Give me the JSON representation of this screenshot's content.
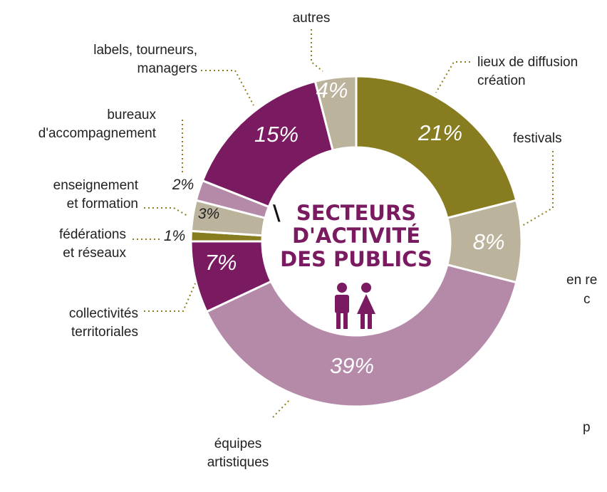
{
  "colors": {
    "olive": "#877c1f",
    "beige": "#bcb39c",
    "mauve": "#b58aa9",
    "purple": "#7a1a61",
    "leader": "#8f7d1d",
    "title": "#7a1a61"
  },
  "center": {
    "title_slash": "\\",
    "title_lines": [
      "SECTEURS",
      "D'ACTIVITÉ",
      "DES PUBLICS"
    ],
    "icon": "people-pair-icon"
  },
  "chart_data": {
    "type": "pie",
    "donut": true,
    "slices": [
      {
        "label_lines": [
          "lieux de diffusion",
          "création"
        ],
        "value": 21,
        "value_label": "21%",
        "color": "#877c1f"
      },
      {
        "label_lines": [
          "festivals"
        ],
        "value": 8,
        "value_label": "8%",
        "color": "#bcb39c"
      },
      {
        "label_lines": [
          "équipes",
          "artistiques"
        ],
        "value": 39,
        "value_label": "39%",
        "color": "#b58aa9"
      },
      {
        "label_lines": [
          "collectivités",
          "territoriales"
        ],
        "value": 7,
        "value_label": "7%",
        "color": "#7a1a61"
      },
      {
        "label_lines": [
          "fédérations",
          "et réseaux"
        ],
        "value": 1,
        "value_label": "1%",
        "color": "#877c1f"
      },
      {
        "label_lines": [
          "enseignement",
          "et formation"
        ],
        "value": 3,
        "value_label": "3%",
        "color": "#bcb39c"
      },
      {
        "label_lines": [
          "bureaux",
          "d'accompagnement"
        ],
        "value": 2,
        "value_label": "2%",
        "color": "#b58aa9"
      },
      {
        "label_lines": [
          "labels, tourneurs,",
          "managers"
        ],
        "value": 15,
        "value_label": "15%",
        "color": "#7a1a61"
      },
      {
        "label_lines": [
          "autres"
        ],
        "value": 4,
        "value_label": "4%",
        "color": "#bcb39c"
      }
    ],
    "clipped_labels": [
      {
        "text": "en re",
        "name": "clipped-label-en-re"
      },
      {
        "text": "c",
        "name": "clipped-label-c"
      },
      {
        "text": "p",
        "name": "clipped-label-p"
      }
    ]
  }
}
